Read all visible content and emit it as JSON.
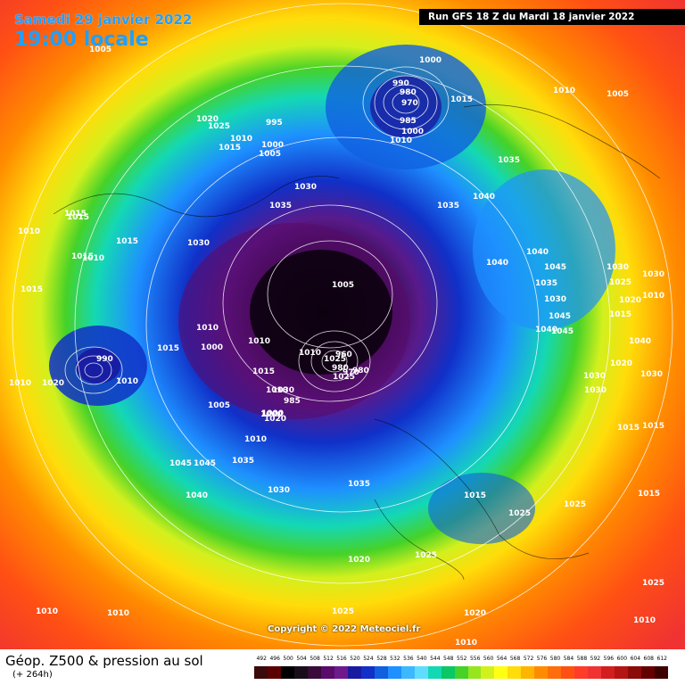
{
  "header": {
    "date": "Samedi 29 janvier 2022",
    "time": "19:00 locale",
    "run": "Run GFS 18 Z du Mardi 18 janvier 2022"
  },
  "footer": {
    "title": "Géop. Z500 & pression au sol",
    "subtitle": "(+ 264h)",
    "copyright": "Copyright © 2022 Meteociel.fr"
  },
  "legend": {
    "labels": [
      "492",
      "496",
      "500",
      "504",
      "508",
      "512",
      "516",
      "520",
      "524",
      "528",
      "532",
      "536",
      "540",
      "544",
      "548",
      "552",
      "556",
      "560",
      "564",
      "568",
      "572",
      "576",
      "580",
      "584",
      "588",
      "592",
      "596",
      "600",
      "604",
      "608",
      "612"
    ],
    "colors": [
      "#3b0a0a",
      "#5a0000",
      "#000000",
      "#1a0d1a",
      "#3a0a3a",
      "#5a0a6a",
      "#6e1a8a",
      "#1a1aa0",
      "#1030c8",
      "#1060e0",
      "#1e90ff",
      "#3cb8ff",
      "#60dcff",
      "#14d8b4",
      "#0ac864",
      "#46d228",
      "#96e61e",
      "#d2f01e",
      "#ffff14",
      "#ffdc0a",
      "#ffb400",
      "#ff8c00",
      "#ff6e0a",
      "#ff5014",
      "#ff3c28",
      "#f03232",
      "#d21e1e",
      "#b41414",
      "#8c0a0a",
      "#640000",
      "#3c0000"
    ]
  },
  "pressure_labels": [
    "1010",
    "1015",
    "1005",
    "1000",
    "990",
    "980",
    "970",
    "985",
    "1000",
    "1010",
    "1035",
    "1015",
    "1010",
    "1005",
    "1030",
    "1020",
    "1025",
    "1015",
    "1010",
    "1000",
    "995",
    "1005",
    "1015",
    "1030",
    "1035",
    "1040",
    "1035",
    "1015",
    "1010",
    "1015",
    "1015",
    "1010",
    "1020",
    "1010",
    "1000",
    "1010",
    "1005",
    "1015",
    "1010",
    "1000",
    "1020",
    "1040",
    "1040",
    "1045",
    "1035",
    "1030",
    "1045",
    "1040",
    "1045",
    "1030",
    "1030",
    "1010",
    "1025",
    "1020",
    "1015",
    "1040",
    "1030",
    "1020",
    "1030",
    "980",
    "990",
    "1010",
    "1015",
    "1010",
    "1005",
    "1000",
    "1010",
    "1025",
    "960",
    "970",
    "980",
    "1025",
    "1030",
    "985",
    "1030",
    "1015",
    "1035",
    "1045",
    "1045",
    "1040",
    "1030",
    "1035",
    "1015",
    "1025",
    "1025",
    "1015",
    "1020",
    "1025",
    "1010",
    "1010",
    "1025",
    "1020",
    "1010",
    "1010",
    "1025",
    "1015"
  ]
}
